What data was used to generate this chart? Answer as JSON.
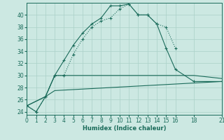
{
  "xlabel": "Humidex (Indice chaleur)",
  "bg_color": "#cce8e2",
  "grid_color": "#aad0c8",
  "line_color": "#1a6b5a",
  "xlim": [
    0,
    21
  ],
  "ylim": [
    23.5,
    42.0
  ],
  "xticks": [
    0,
    1,
    2,
    3,
    4,
    5,
    6,
    7,
    8,
    9,
    10,
    11,
    12,
    13,
    14,
    15,
    16,
    18,
    21
  ],
  "yticks": [
    24,
    26,
    28,
    30,
    32,
    34,
    36,
    38,
    40
  ],
  "curve1_x": [
    0,
    1,
    2,
    3,
    4,
    5,
    6,
    7,
    8,
    9,
    10,
    11,
    12,
    13,
    14,
    15,
    16,
    18,
    21
  ],
  "curve1_y": [
    25.0,
    24.0,
    26.5,
    30.0,
    32.5,
    35.0,
    37.0,
    38.5,
    39.5,
    41.5,
    41.5,
    41.8,
    40.0,
    40.0,
    38.5,
    34.5,
    31.0,
    29.0,
    29.0
  ],
  "curve2_x": [
    0,
    1,
    2,
    3,
    4,
    5,
    6,
    7,
    8,
    9,
    10,
    11,
    12,
    13,
    14,
    15,
    16
  ],
  "curve2_y": [
    25.0,
    24.0,
    26.5,
    30.0,
    30.0,
    33.5,
    36.0,
    38.0,
    39.0,
    39.5,
    41.0,
    41.8,
    40.0,
    40.0,
    38.5,
    38.0,
    34.5
  ],
  "curve3_x": [
    0,
    2,
    3,
    4,
    16,
    18,
    21
  ],
  "curve3_y": [
    25.0,
    26.5,
    30.0,
    30.0,
    30.0,
    30.0,
    29.5
  ],
  "curve4_x": [
    0,
    2,
    3,
    21
  ],
  "curve4_y": [
    25.0,
    26.5,
    27.5,
    29.0
  ]
}
